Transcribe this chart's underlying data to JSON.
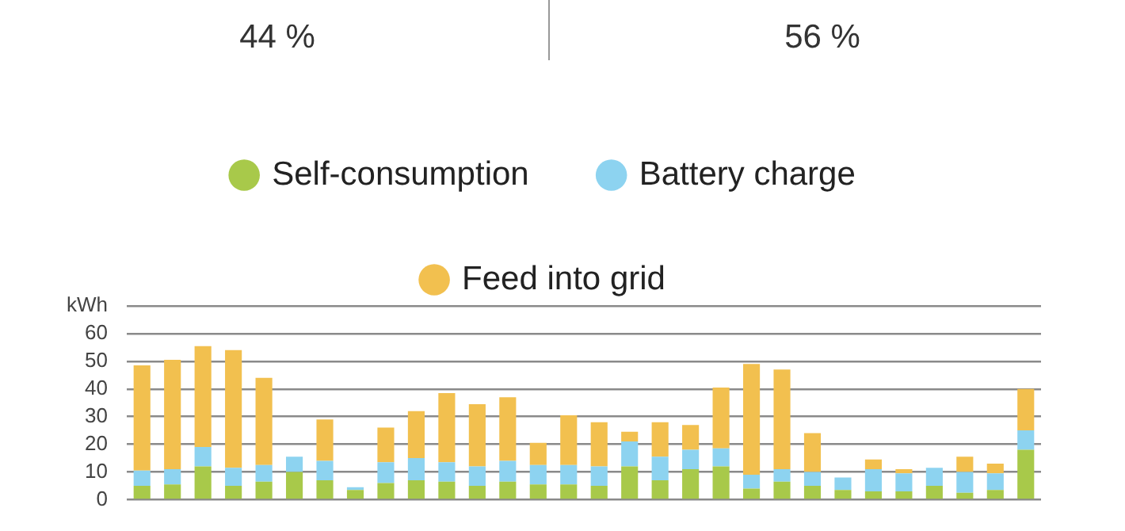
{
  "chart_data": {
    "type": "bar",
    "stacked": true,
    "annotations": [
      "44 %",
      "56 %"
    ],
    "categories": [
      null,
      null,
      null,
      null,
      null,
      null,
      null,
      null,
      null,
      null,
      null,
      null,
      null,
      null,
      null,
      null,
      null,
      null,
      null,
      null,
      null,
      null,
      null,
      null,
      null,
      null,
      null,
      null,
      null,
      null
    ],
    "series": [
      {
        "name": "Self-consumption",
        "color": "#a8c94a",
        "values": [
          5,
          5.5,
          12,
          5,
          6.5,
          10,
          7,
          3.5,
          6,
          7,
          6.5,
          5,
          6.5,
          5.5,
          5.5,
          5,
          12,
          7,
          11,
          12,
          4,
          6.5,
          5,
          3.5,
          3,
          3,
          5,
          2.5,
          3.5,
          18
        ]
      },
      {
        "name": "Battery charge",
        "color": "#8dd3f0",
        "values": [
          5.5,
          5.5,
          7,
          6.5,
          6,
          5.5,
          7,
          1,
          7.5,
          8,
          7,
          7,
          7.5,
          7,
          7,
          7,
          9,
          8.5,
          7,
          6.5,
          5,
          4.5,
          5,
          4.5,
          8,
          6.5,
          6.5,
          7.5,
          6,
          7
        ]
      },
      {
        "name": "Feed into grid",
        "color": "#f2c04f",
        "values": [
          38,
          39.5,
          36.5,
          42.5,
          31.5,
          0,
          15,
          0,
          12.5,
          17,
          25,
          22.5,
          23,
          8,
          18,
          16,
          3.5,
          12.5,
          9,
          22,
          40,
          36,
          14,
          0,
          3.5,
          1.5,
          0,
          5.5,
          3.5,
          15
        ]
      }
    ],
    "ylim": [
      0,
      70
    ],
    "yticks": [
      0,
      10,
      20,
      30,
      40,
      50,
      60,
      {
        "value": 70,
        "label": "kWh"
      }
    ],
    "grid": "y",
    "legend": "top",
    "tick_labels": "y"
  }
}
